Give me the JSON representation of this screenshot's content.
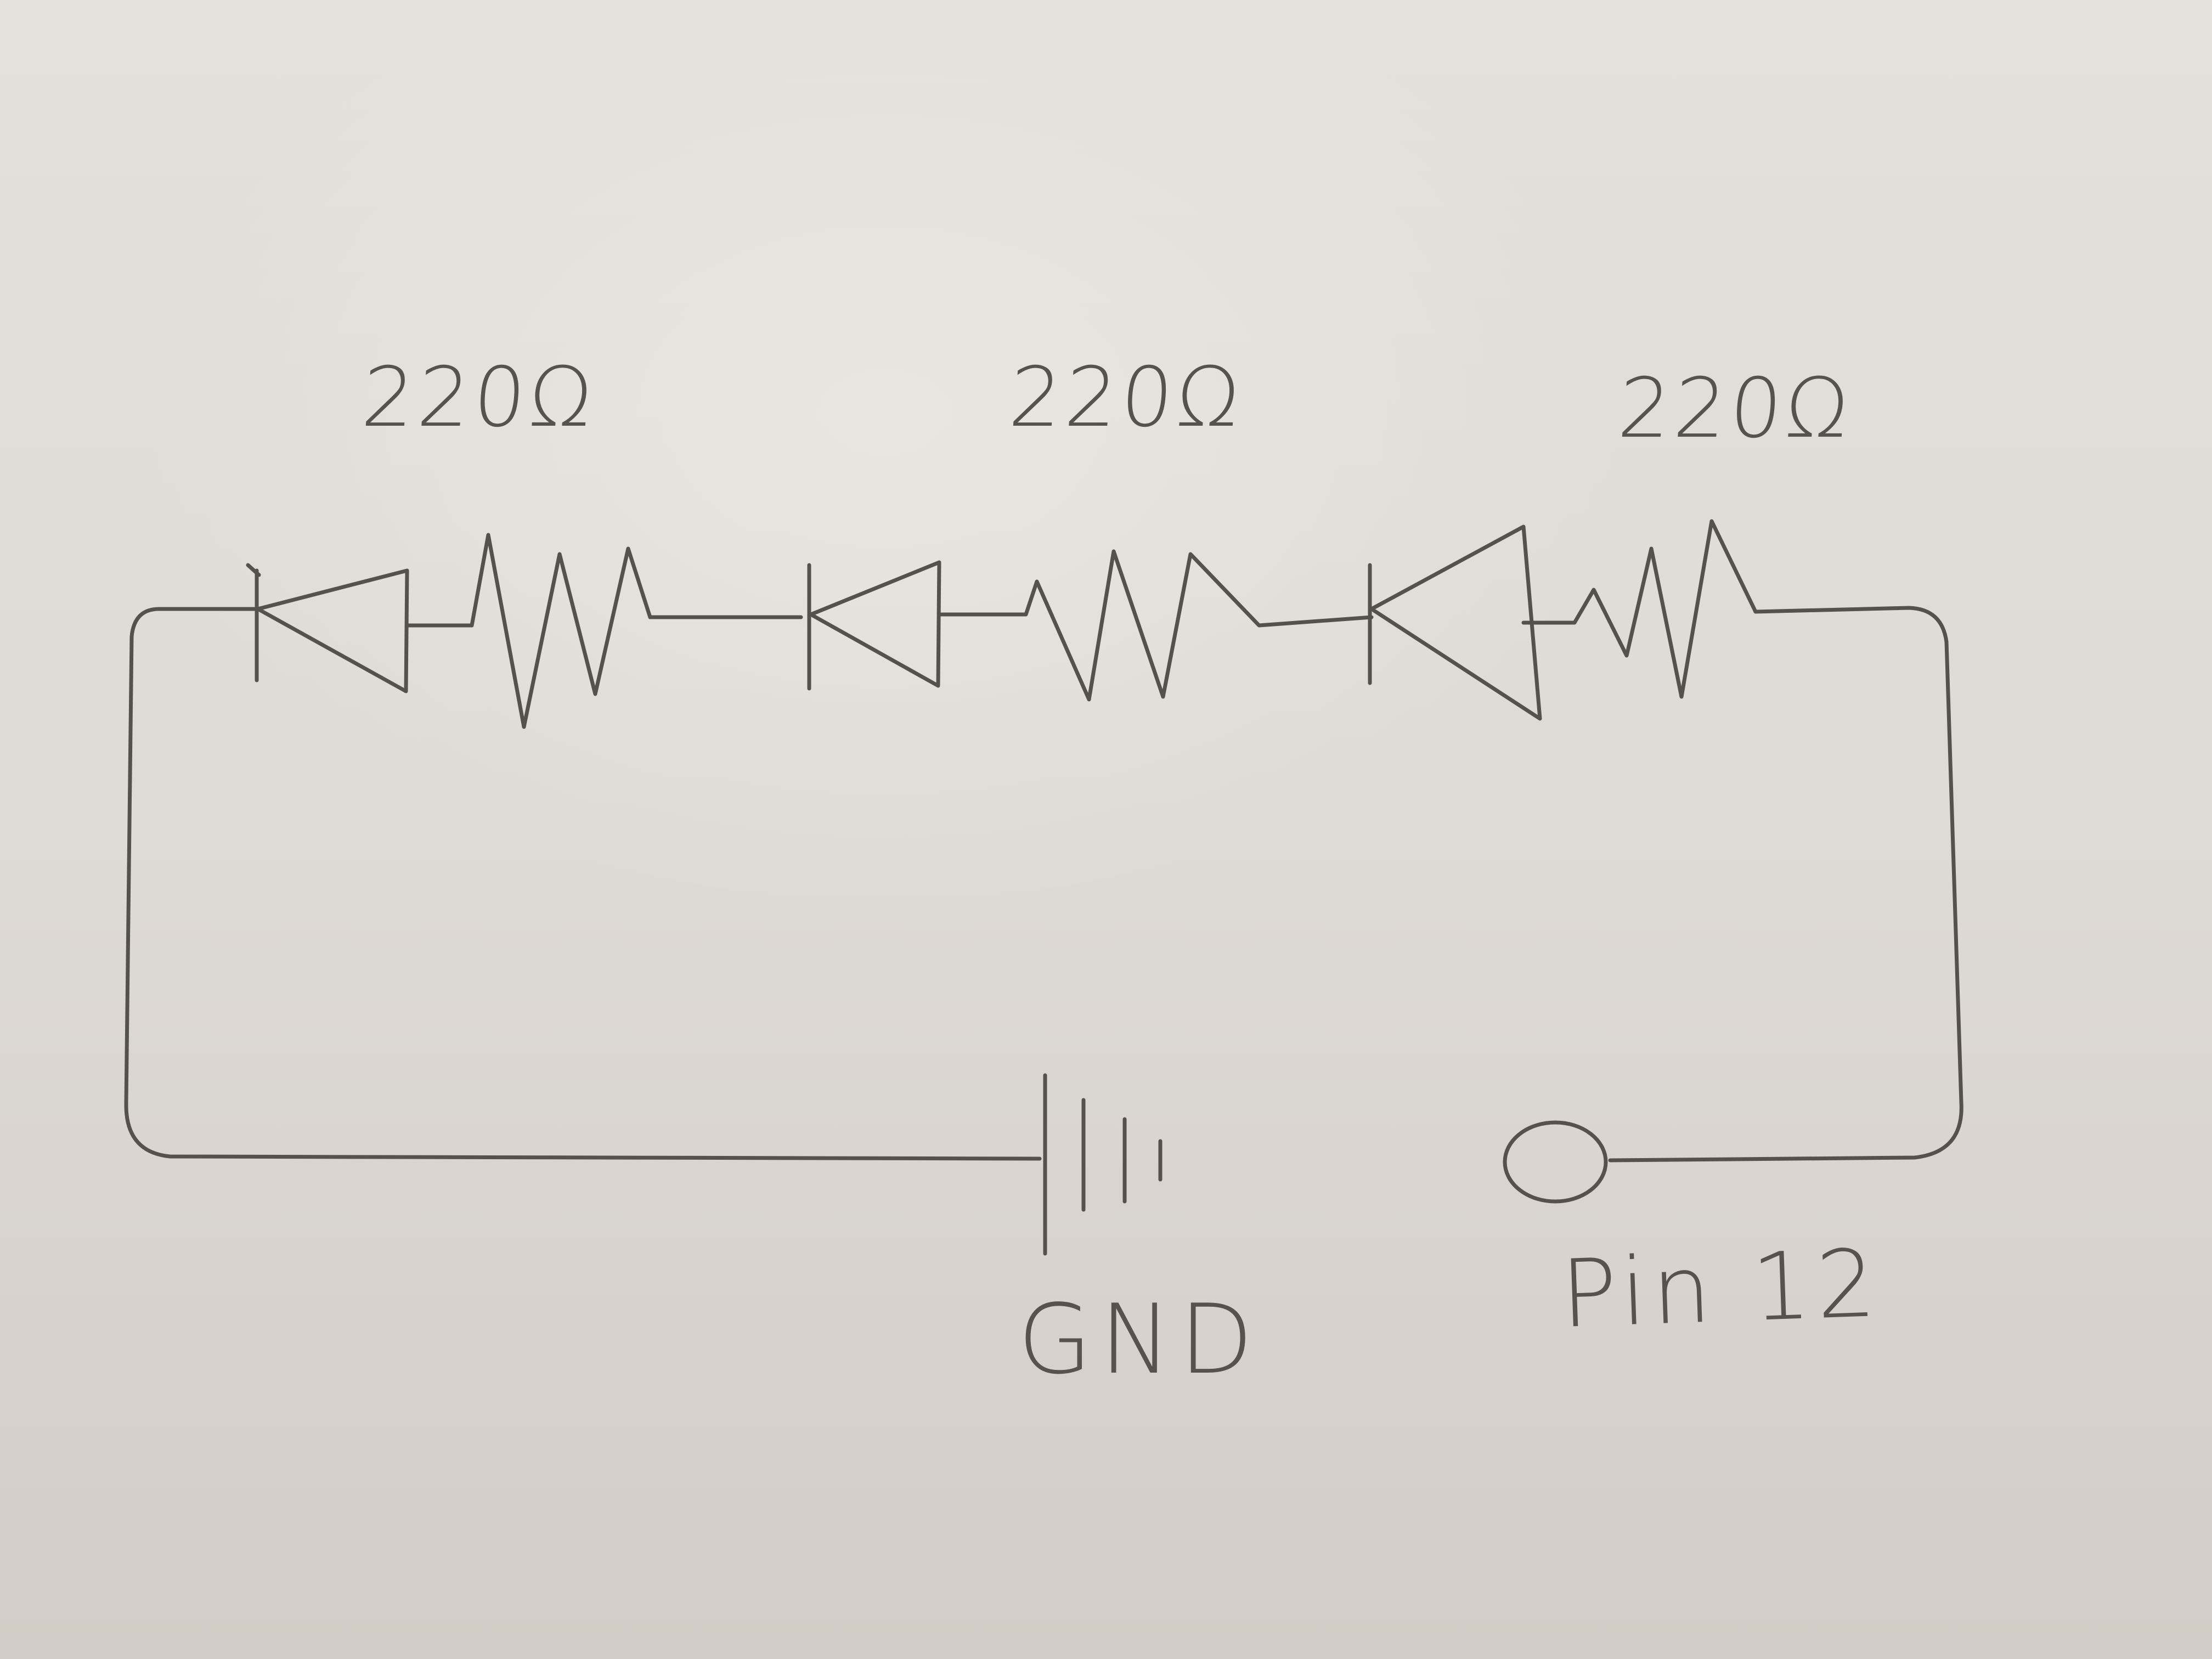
{
  "resistors": [
    {
      "label": "220Ω"
    },
    {
      "label": "220Ω"
    },
    {
      "label": "220Ω"
    }
  ],
  "diodes_count": 3,
  "ground": {
    "label": "GND"
  },
  "output_pin": {
    "label": "Pin 12"
  },
  "colors": {
    "paper": "#ddd9d3",
    "pencil": "#55514c"
  }
}
